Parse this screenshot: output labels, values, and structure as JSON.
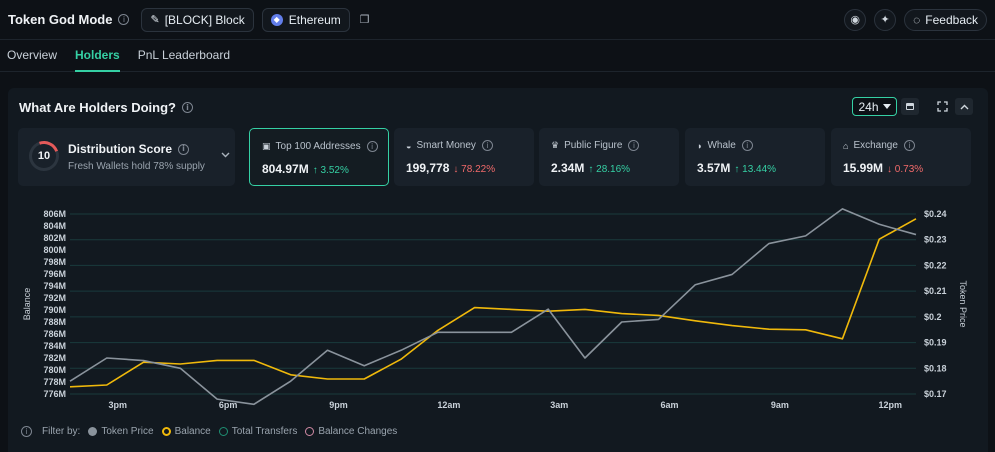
{
  "header": {
    "title": "Token God Mode",
    "token_pill": "[BLOCK] Block",
    "chain_pill": "Ethereum",
    "feedback_label": "Feedback"
  },
  "tabs": [
    {
      "label": "Overview",
      "active": false
    },
    {
      "label": "Holders",
      "active": true
    },
    {
      "label": "PnL Leaderboard",
      "active": false
    }
  ],
  "panel": {
    "title": "What Are Holders Doing?",
    "range": "24h"
  },
  "distribution": {
    "label": "Distribution Score",
    "score": "10",
    "subtitle": "Fresh Wallets hold 78% supply"
  },
  "cards": [
    {
      "label": "Top 100 Addresses",
      "icon": "wallet-icon",
      "value": "804.97M",
      "delta": "↑ 3.52%",
      "direction": "up",
      "selected": true
    },
    {
      "label": "Smart Money",
      "icon": "smart-money-icon",
      "value": "199,778",
      "delta": "↓ 78.22%",
      "direction": "down",
      "selected": false
    },
    {
      "label": "Public Figure",
      "icon": "public-figure-icon",
      "value": "2.34M",
      "delta": "↑ 28.16%",
      "direction": "up",
      "selected": false
    },
    {
      "label": "Whale",
      "icon": "whale-icon",
      "value": "3.57M",
      "delta": "↑ 13.44%",
      "direction": "up",
      "selected": false
    },
    {
      "label": "Exchange",
      "icon": "exchange-icon",
      "value": "15.99M",
      "delta": "↓ 0.73%",
      "direction": "down",
      "selected": false
    }
  ],
  "legend": {
    "filter_label": "Filter by:",
    "items": [
      "Token Price",
      "Balance",
      "Total Transfers",
      "Balance Changes"
    ]
  },
  "colors": {
    "accent": "#35d0a4",
    "balance": "#f0b90b",
    "price": "#8a939c",
    "down": "#f16a6a"
  },
  "chart_data": {
    "type": "line",
    "xlabel": "",
    "ylabel": "Balance",
    "y2label": "Token Price",
    "x_ticks": [
      "3pm",
      "6pm",
      "9pm",
      "12am",
      "3am",
      "6am",
      "9am",
      "12pm"
    ],
    "x_tick_positions": [
      1.3,
      4.3,
      7.3,
      10.3,
      13.3,
      16.3,
      19.3,
      22.3
    ],
    "y_ticks": [
      "806M",
      "804M",
      "802M",
      "800M",
      "798M",
      "796M",
      "794M",
      "792M",
      "790M",
      "788M",
      "786M",
      "784M",
      "782M",
      "780M",
      "778M",
      "776M"
    ],
    "ylim": [
      776,
      806
    ],
    "y2_ticks": [
      "$0.24",
      "$0.23",
      "$0.22",
      "$0.21",
      "$0.2",
      "$0.19",
      "$0.18",
      "$0.17"
    ],
    "y2lim": [
      0.17,
      0.24
    ],
    "x": [
      0,
      1,
      2,
      3,
      4,
      5,
      6,
      7,
      8,
      9,
      10,
      11,
      12,
      13,
      14,
      15,
      16,
      17,
      18,
      19,
      20,
      21,
      22,
      23
    ],
    "series": [
      {
        "name": "Balance",
        "axis": "left",
        "color": "#f0b90b",
        "values": [
          777.2,
          777.5,
          781.3,
          781.0,
          781.6,
          781.6,
          779.2,
          778.5,
          778.5,
          781.8,
          786.6,
          790.4,
          790.1,
          789.8,
          790.1,
          789.4,
          789.1,
          788.2,
          787.4,
          786.8,
          786.7,
          785.2,
          801.8,
          805.2
        ]
      },
      {
        "name": "Token Price",
        "axis": "right",
        "color": "#8a939c",
        "values": [
          0.175,
          0.184,
          0.183,
          0.18,
          0.168,
          0.166,
          0.175,
          0.187,
          0.181,
          0.187,
          0.194,
          0.194,
          0.194,
          0.203,
          0.184,
          0.198,
          0.199,
          0.2125,
          0.2165,
          0.2285,
          0.2315,
          0.242,
          0.236,
          0.232
        ]
      }
    ]
  }
}
